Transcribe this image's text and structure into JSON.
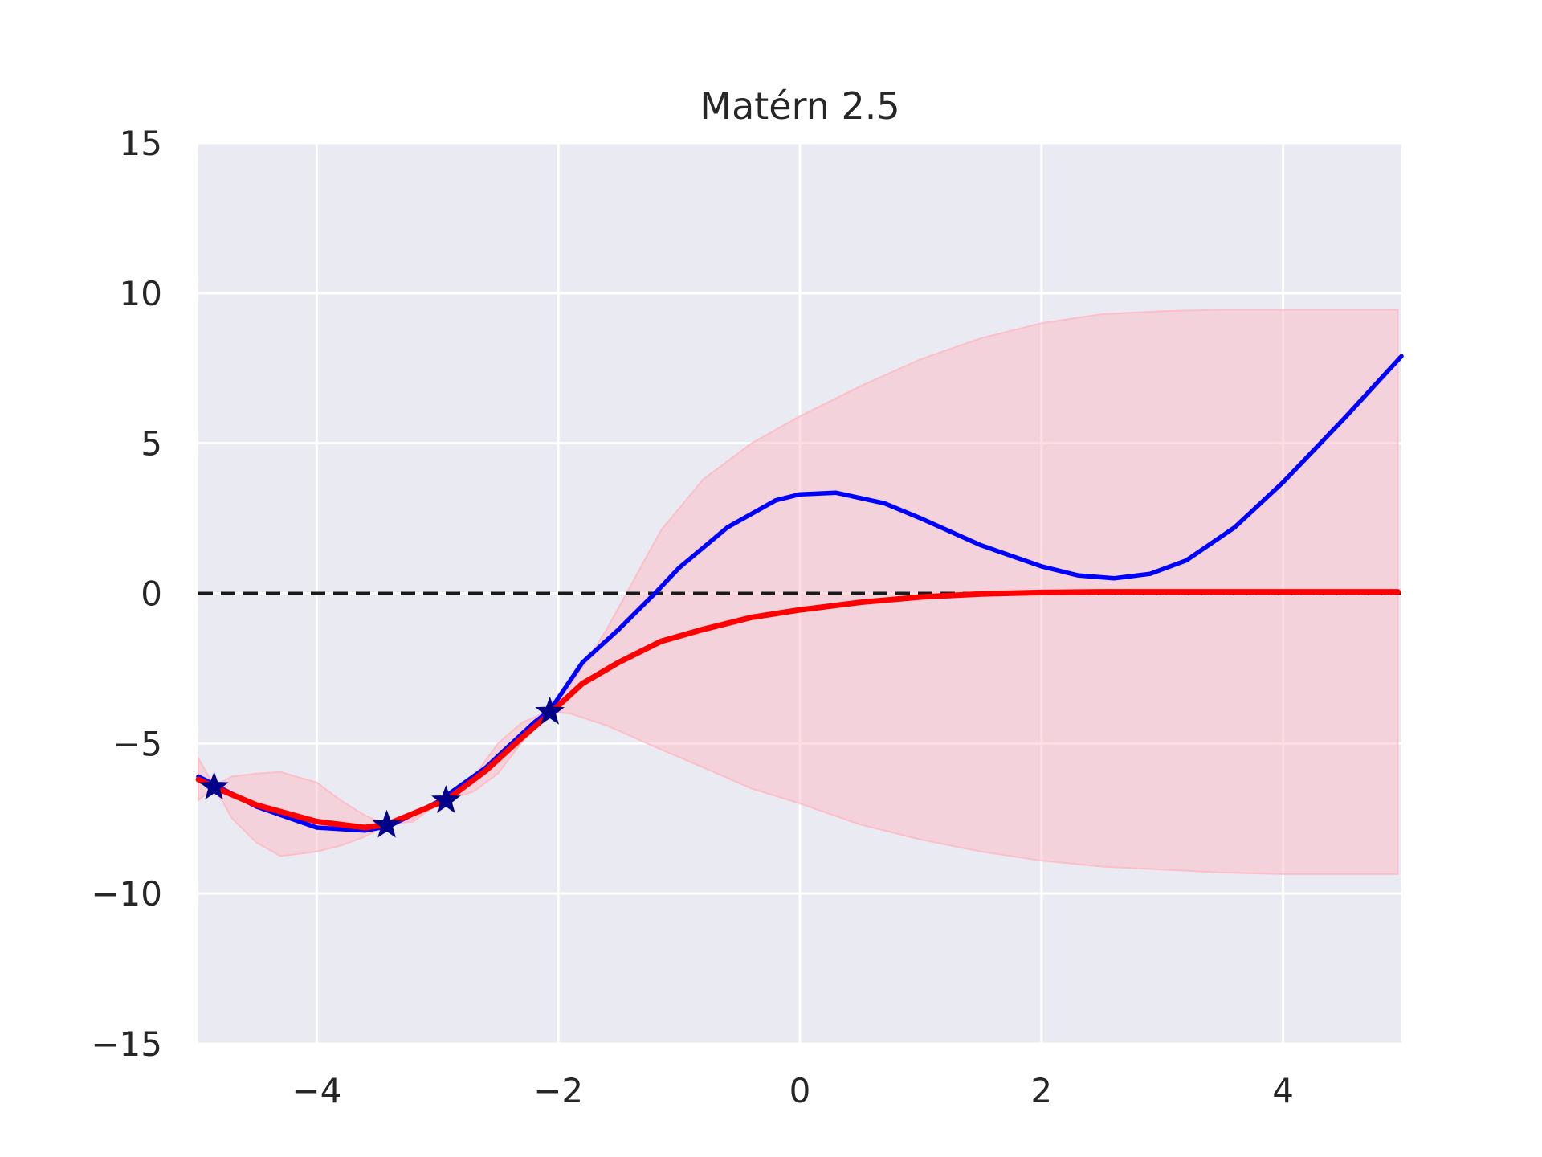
{
  "chart_data": {
    "type": "line",
    "title": "Matérn 2.5",
    "xlabel": "",
    "ylabel": "",
    "xlim": [
      -4.98,
      4.98
    ],
    "ylim": [
      -15,
      15
    ],
    "xticks": [
      -4,
      -2,
      0,
      2,
      4
    ],
    "yticks": [
      -15,
      -10,
      -5,
      0,
      5,
      10,
      15
    ],
    "xtick_labels": [
      "−4",
      "−2",
      "0",
      "2",
      "4"
    ],
    "ytick_labels": [
      "−15",
      "−10",
      "−5",
      "0",
      "5",
      "10",
      "15"
    ],
    "grid": true,
    "legend": "none",
    "colors": {
      "background": "#eaeaf2",
      "grid": "#ffffff",
      "true_function": "#0000ff",
      "posterior_mean": "#ff0000",
      "confidence_band": "#ffb6c1",
      "zero_line": "#1a1a1a",
      "observations": "#00008b"
    },
    "series": [
      {
        "role": "true-function",
        "x": [
          -4.98,
          -4.5,
          -4.0,
          -3.6,
          -3.4,
          -3.0,
          -2.6,
          -2.2,
          -2.07,
          -1.8,
          -1.5,
          -1.2,
          -1.0,
          -0.6,
          -0.2,
          0.0,
          0.3,
          0.7,
          1.0,
          1.5,
          2.0,
          2.3,
          2.6,
          2.9,
          3.2,
          3.6,
          4.0,
          4.5,
          4.98
        ],
        "y": [
          -6.1,
          -7.1,
          -7.8,
          -7.9,
          -7.75,
          -6.95,
          -5.8,
          -4.3,
          -3.9,
          -2.3,
          -1.2,
          0.0,
          0.85,
          2.2,
          3.1,
          3.3,
          3.35,
          3.0,
          2.5,
          1.6,
          0.9,
          0.6,
          0.5,
          0.65,
          1.1,
          2.2,
          3.7,
          5.8,
          7.9
        ]
      },
      {
        "role": "posterior-mean",
        "x": [
          -4.98,
          -4.85,
          -4.5,
          -4.0,
          -3.6,
          -3.42,
          -3.0,
          -2.93,
          -2.6,
          -2.3,
          -2.07,
          -1.8,
          -1.5,
          -1.15,
          -0.8,
          -0.4,
          0.0,
          0.5,
          1.0,
          1.5,
          2.0,
          2.5,
          3.0,
          3.5,
          4.0,
          4.5,
          4.95
        ],
        "y": [
          -6.2,
          -6.45,
          -7.05,
          -7.6,
          -7.8,
          -7.7,
          -7.0,
          -6.9,
          -5.9,
          -4.8,
          -4.0,
          -3.0,
          -2.3,
          -1.6,
          -1.2,
          -0.8,
          -0.55,
          -0.3,
          -0.12,
          -0.02,
          0.03,
          0.05,
          0.05,
          0.05,
          0.05,
          0.05,
          0.05
        ]
      }
    ],
    "confidence_band": {
      "x": [
        -4.98,
        -4.85,
        -4.7,
        -4.5,
        -4.3,
        -4.0,
        -3.8,
        -3.6,
        -3.42,
        -3.2,
        -3.0,
        -2.93,
        -2.7,
        -2.5,
        -2.3,
        -2.07,
        -1.9,
        -1.6,
        -1.15,
        -0.8,
        -0.4,
        0.0,
        0.5,
        1.0,
        1.5,
        2.0,
        2.5,
        3.0,
        3.5,
        4.0,
        4.5,
        4.95
      ],
      "upper": [
        -5.5,
        -6.4,
        -6.1,
        -6.0,
        -5.95,
        -6.3,
        -6.9,
        -7.4,
        -7.7,
        -7.5,
        -7.0,
        -6.9,
        -6.1,
        -5.0,
        -4.3,
        -3.9,
        -3.1,
        -1.2,
        2.1,
        3.8,
        5.0,
        5.9,
        6.9,
        7.8,
        8.5,
        9.0,
        9.3,
        9.4,
        9.45,
        9.45,
        9.45,
        9.45
      ],
      "lower": [
        -6.9,
        -6.45,
        -7.5,
        -8.3,
        -8.75,
        -8.6,
        -8.4,
        -8.1,
        -7.7,
        -7.6,
        -7.0,
        -6.9,
        -6.6,
        -6.0,
        -4.95,
        -3.95,
        -4.0,
        -4.4,
        -5.2,
        -5.8,
        -6.5,
        -7.0,
        -7.7,
        -8.2,
        -8.6,
        -8.9,
        -9.1,
        -9.2,
        -9.3,
        -9.35,
        -9.35,
        -9.35
      ]
    },
    "reference_line": {
      "role": "zero-line",
      "y": 0,
      "style": "dashed"
    },
    "observations": {
      "x": [
        -4.85,
        -3.42,
        -2.93,
        -2.07
      ],
      "y": [
        -6.45,
        -7.72,
        -6.9,
        -3.95
      ]
    }
  }
}
